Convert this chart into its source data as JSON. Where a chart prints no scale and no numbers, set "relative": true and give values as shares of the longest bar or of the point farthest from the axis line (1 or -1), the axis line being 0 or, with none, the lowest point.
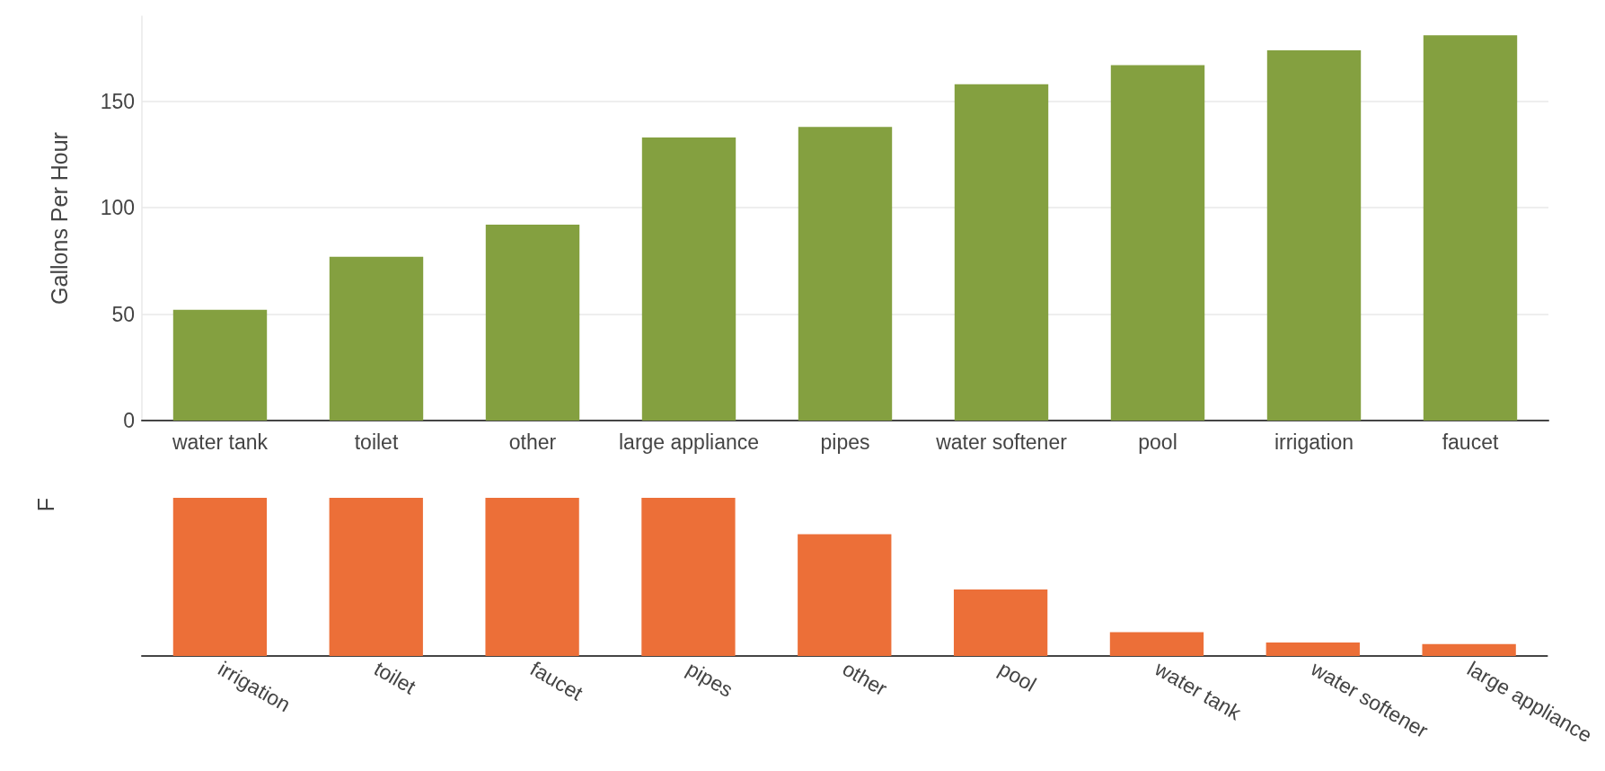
{
  "chart_data": [
    {
      "type": "bar",
      "ylabel": "Gallons Per Hour",
      "categories": [
        "water tank",
        "toilet",
        "other",
        "large appliance",
        "pipes",
        "water softener",
        "pool",
        "irrigation",
        "faucet"
      ],
      "values": [
        52,
        77,
        92,
        133,
        138,
        158,
        167,
        174,
        181
      ],
      "color": "#84a040",
      "ylim": [
        0,
        190
      ],
      "yticks": [
        0,
        50,
        100,
        150
      ],
      "grid": "y"
    },
    {
      "type": "bar",
      "ylabel": "F",
      "relative": true,
      "categories": [
        "irrigation",
        "toilet",
        "faucet",
        "pipes",
        "other",
        "pool",
        "water tank",
        "water softener",
        "large appliance"
      ],
      "values": [
        1,
        1,
        1,
        1,
        0.77,
        0.42,
        0.15,
        0.085,
        0.075
      ],
      "color": "#ec6f38"
    }
  ]
}
